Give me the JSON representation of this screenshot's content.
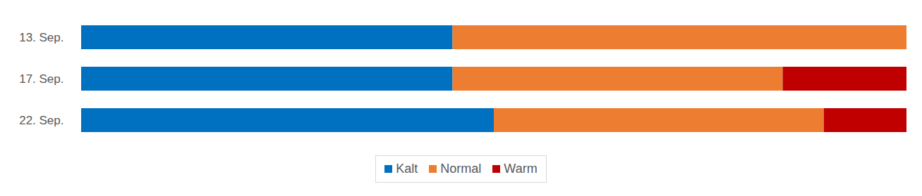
{
  "chart_data": {
    "type": "bar",
    "orientation": "horizontal",
    "stacked": true,
    "categories": [
      "13. Sep.",
      "17. Sep.",
      "22. Sep."
    ],
    "series": [
      {
        "name": "Kalt",
        "color": "#0070c0",
        "values": [
          45,
          45,
          50
        ]
      },
      {
        "name": "Normal",
        "color": "#ed7d31",
        "values": [
          55,
          40,
          40
        ]
      },
      {
        "name": "Warm",
        "color": "#c00000",
        "values": [
          0,
          15,
          10
        ]
      }
    ],
    "xlim": [
      0,
      100
    ],
    "tick_labels": "y",
    "legend": "bottom"
  }
}
